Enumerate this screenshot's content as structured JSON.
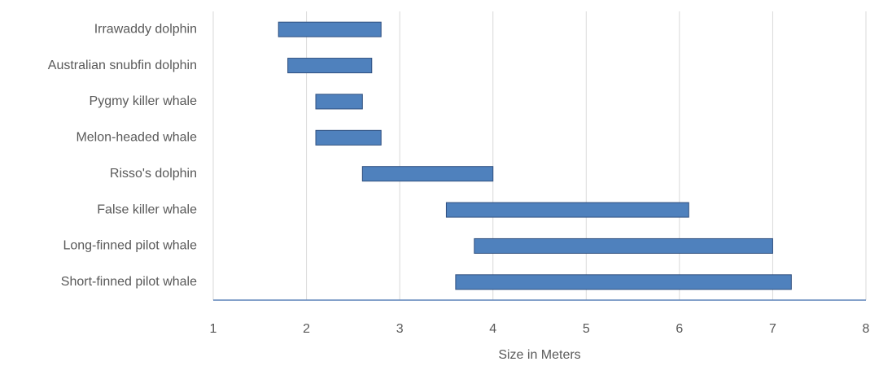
{
  "chart_data": {
    "type": "floating-bar",
    "orientation": "horizontal",
    "x_label": "Size in Meters",
    "categories": [
      "Irrawaddy dolphin",
      "Australian snubfin dolphin",
      "Pygmy killer whale",
      "Melon-headed whale",
      "Risso's dolphin",
      "False killer whale",
      "Long-finned pilot whale",
      "Short-finned pilot whale"
    ],
    "starts": [
      1.7,
      1.8,
      2.1,
      2.1,
      2.6,
      3.5,
      3.8,
      3.6
    ],
    "ends": [
      2.8,
      2.7,
      2.6,
      2.8,
      4.0,
      6.1,
      7.0,
      7.2
    ],
    "color": "#4f81bd",
    "xlim": [
      1,
      8
    ],
    "xticks": [
      1,
      2,
      3,
      4,
      5,
      6,
      7,
      8
    ],
    "grid": true
  }
}
